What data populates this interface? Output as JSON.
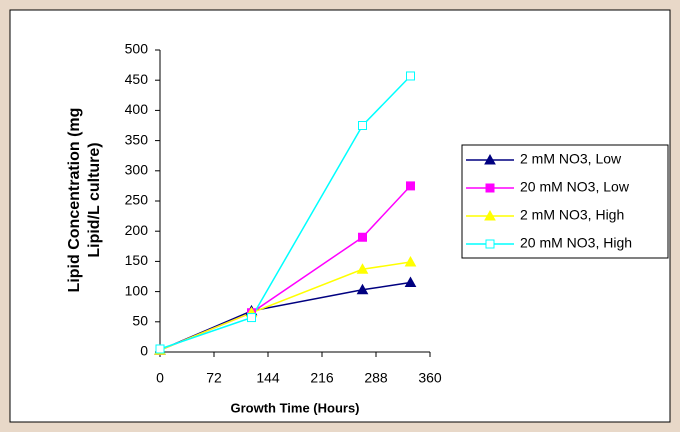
{
  "chart_data": {
    "type": "line",
    "x_label": "Growth Time (Hours)",
    "y_label_lines": [
      "Lipid Concentration (mg",
      "Lipid/L culture)"
    ],
    "x": [
      0,
      122,
      270,
      334
    ],
    "series": [
      {
        "name": "2 mM NO3, Low",
        "color": "#000080",
        "marker": "triangle",
        "filled": true,
        "values": [
          3,
          68,
          103,
          115
        ]
      },
      {
        "name": "20 mM NO3, Low",
        "color": "#ff00ff",
        "marker": "square",
        "filled": true,
        "values": [
          3,
          65,
          190,
          275
        ]
      },
      {
        "name": "2 mM NO3, High",
        "color": "#ffff00",
        "marker": "triangle",
        "filled": true,
        "values": [
          3,
          65,
          137,
          149
        ]
      },
      {
        "name": "20 mM NO3, High",
        "color": "#00ffff",
        "marker": "square",
        "filled": false,
        "values": [
          5,
          57,
          375,
          457
        ]
      }
    ],
    "xlim": [
      0,
      360
    ],
    "xticks": [
      0,
      72,
      144,
      216,
      288,
      360
    ],
    "ylim": [
      0,
      500
    ],
    "yticks": [
      0,
      50,
      100,
      150,
      200,
      250,
      300,
      350,
      400,
      450,
      500
    ],
    "grid": false,
    "legend": "right"
  }
}
